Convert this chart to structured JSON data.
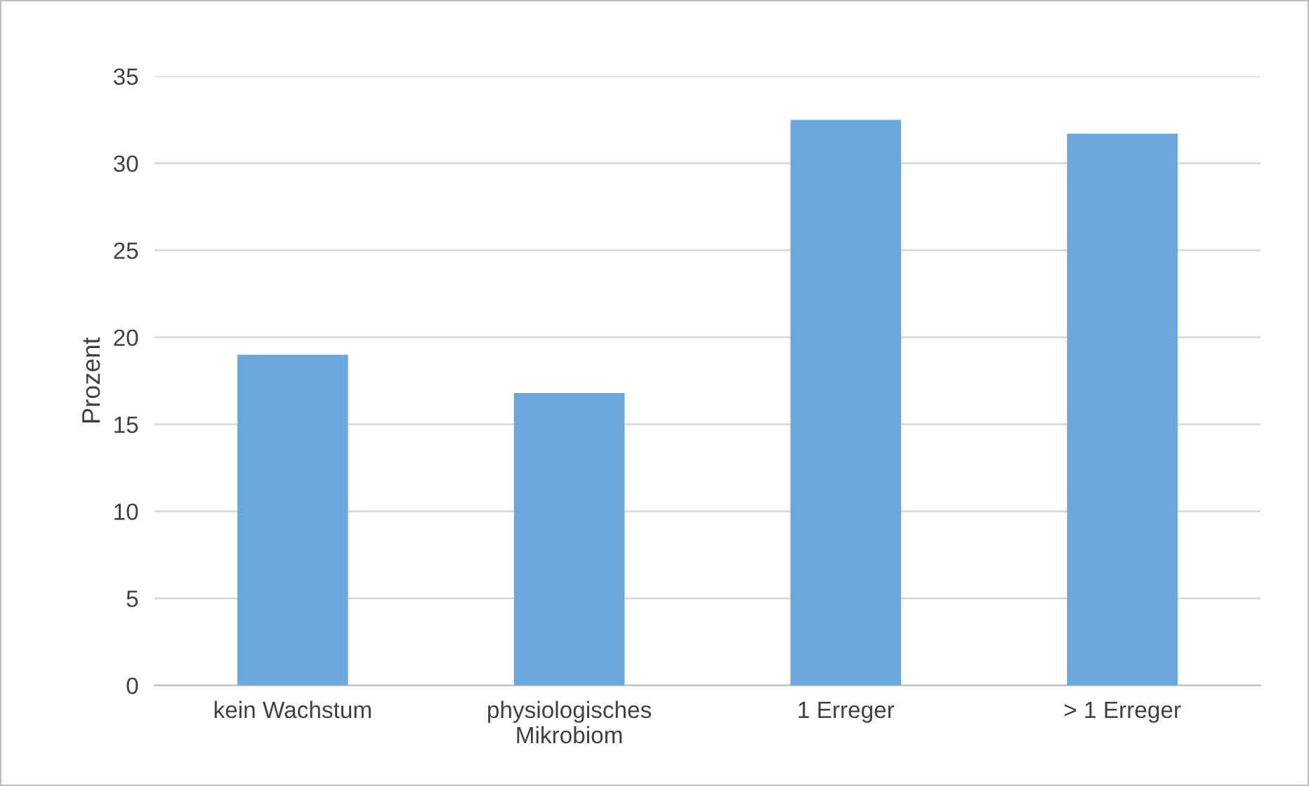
{
  "chart_data": {
    "type": "bar",
    "ylabel": "Prozent",
    "categories": [
      "kein Wachstum",
      "physiologisches\nMikrobiom",
      "1 Erreger",
      "> 1 Erreger"
    ],
    "values": [
      19.0,
      16.8,
      32.5,
      31.7
    ],
    "color": "#6aa8db",
    "ylim": [
      0,
      35
    ],
    "yticks": [
      0,
      5,
      10,
      15,
      20,
      25,
      30,
      35
    ],
    "grid": "y"
  }
}
